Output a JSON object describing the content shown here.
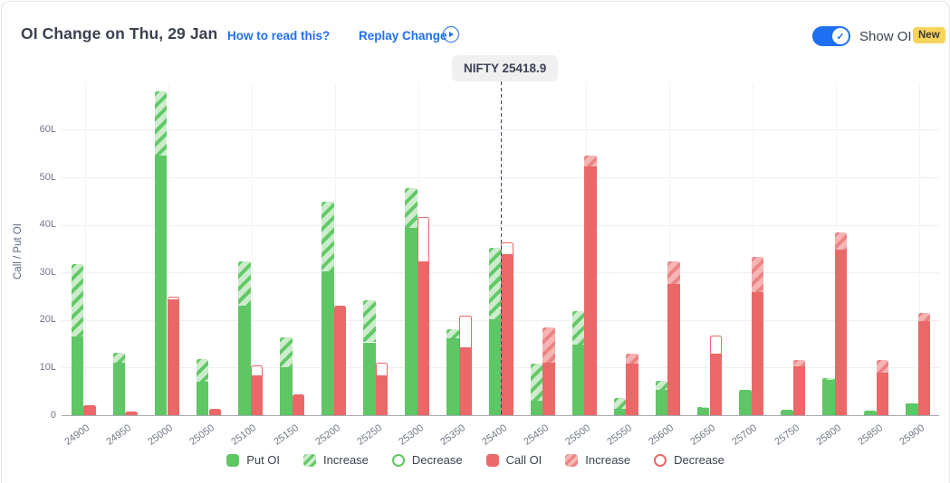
{
  "header": {
    "title": "OI Change on Thu, 29 Jan",
    "link_how_to_read": "How to read this?",
    "link_replay": "Replay Change",
    "show_oi_label": "Show OI",
    "new_badge": "New",
    "toggle_on": true
  },
  "colors": {
    "put_green": "#5ec664",
    "put_light_green": "#cceccc",
    "put_stripe_green": "#63c968",
    "call_red": "#ea6868",
    "call_light_red": "#f6b4b4",
    "call_stripe_red": "#ec8484",
    "accent_blue": "#1f6ff2",
    "link_blue": "#2b6be4",
    "badge_yellow": "#f9d45c",
    "nifty_line": "#3c4352"
  },
  "chart_data": {
    "type": "bar",
    "title": "OI Change on Thu, 29 Jan",
    "ylabel": "Call / Put OI",
    "xlabel": "",
    "unit": "lakh (L)",
    "ylim": [
      0,
      70
    ],
    "y_ticks": [
      "0",
      "10L",
      "20L",
      "30L",
      "40L",
      "50L",
      "60L"
    ],
    "grid": true,
    "legend_position": "bottom",
    "nifty_label": "NIFTY 25418.9",
    "nifty_value": 25418.9,
    "legend": [
      {
        "label": "Put OI",
        "swatch": "put-solid"
      },
      {
        "label": "Increase",
        "swatch": "put-increase"
      },
      {
        "label": "Decrease",
        "swatch": "put-decrease"
      },
      {
        "label": "Call OI",
        "swatch": "call-solid"
      },
      {
        "label": "Increase",
        "swatch": "call-increase"
      },
      {
        "label": "Decrease",
        "swatch": "call-decrease"
      }
    ],
    "categories": [
      "24900",
      "24950",
      "25000",
      "25050",
      "25100",
      "25150",
      "25200",
      "25250",
      "25300",
      "25350",
      "25400",
      "25450",
      "25500",
      "25550",
      "25600",
      "25650",
      "25700",
      "25750",
      "25800",
      "25850",
      "25900"
    ],
    "strikes": [
      {
        "strike": "24900",
        "put": {
          "solid": 16.5,
          "increase": 15.3,
          "decrease": 0
        },
        "call": {
          "solid": 2.1,
          "increase": 0,
          "decrease": 0
        }
      },
      {
        "strike": "24950",
        "put": {
          "solid": 11.0,
          "increase": 2.2,
          "decrease": 0
        },
        "call": {
          "solid": 0.8,
          "increase": 0,
          "decrease": 0
        }
      },
      {
        "strike": "25000",
        "put": {
          "solid": 54.5,
          "increase": 13.5,
          "decrease": 0
        },
        "call": {
          "solid": 24.4,
          "increase": 0,
          "decrease": 0.6
        }
      },
      {
        "strike": "25050",
        "put": {
          "solid": 7.0,
          "increase": 4.8,
          "decrease": 0
        },
        "call": {
          "solid": 1.4,
          "increase": 0,
          "decrease": 0
        }
      },
      {
        "strike": "25100",
        "put": {
          "solid": 23.0,
          "increase": 9.4,
          "decrease": 0
        },
        "call": {
          "solid": 8.3,
          "increase": 0,
          "decrease": 2.2
        }
      },
      {
        "strike": "25150",
        "put": {
          "solid": 10.0,
          "increase": 6.4,
          "decrease": 0
        },
        "call": {
          "solid": 4.3,
          "increase": 0,
          "decrease": 0
        }
      },
      {
        "strike": "25200",
        "put": {
          "solid": 30.3,
          "increase": 14.5,
          "decrease": 0
        },
        "call": {
          "solid": 23.0,
          "increase": 0,
          "decrease": 0
        }
      },
      {
        "strike": "25250",
        "put": {
          "solid": 15.3,
          "increase": 8.9,
          "decrease": 0
        },
        "call": {
          "solid": 8.3,
          "increase": 0,
          "decrease": 2.8
        }
      },
      {
        "strike": "25300",
        "put": {
          "solid": 39.3,
          "increase": 8.5,
          "decrease": 0
        },
        "call": {
          "solid": 32.3,
          "increase": 0,
          "decrease": 9.3
        }
      },
      {
        "strike": "25350",
        "put": {
          "solid": 16.2,
          "increase": 1.9,
          "decrease": 0
        },
        "call": {
          "solid": 14.2,
          "increase": 0,
          "decrease": 6.8
        }
      },
      {
        "strike": "25400",
        "put": {
          "solid": 20.1,
          "increase": 15.1,
          "decrease": 0
        },
        "call": {
          "solid": 33.8,
          "increase": 0,
          "decrease": 2.5
        }
      },
      {
        "strike": "25450",
        "put": {
          "solid": 3.0,
          "increase": 7.8,
          "decrease": 0
        },
        "call": {
          "solid": 11.0,
          "increase": 7.4,
          "decrease": 0
        }
      },
      {
        "strike": "25500",
        "put": {
          "solid": 14.8,
          "increase": 7.1,
          "decrease": 0
        },
        "call": {
          "solid": 52.2,
          "increase": 2.4,
          "decrease": 0
        }
      },
      {
        "strike": "25550",
        "put": {
          "solid": 1.4,
          "increase": 2.3,
          "decrease": 0
        },
        "call": {
          "solid": 10.9,
          "increase": 2.1,
          "decrease": 0
        }
      },
      {
        "strike": "25600",
        "put": {
          "solid": 5.4,
          "increase": 1.9,
          "decrease": 0
        },
        "call": {
          "solid": 27.5,
          "increase": 4.8,
          "decrease": 0
        }
      },
      {
        "strike": "25650",
        "put": {
          "solid": 1.5,
          "increase": 0.3,
          "decrease": 0
        },
        "call": {
          "solid": 12.9,
          "increase": 0,
          "decrease": 3.8
        }
      },
      {
        "strike": "25700",
        "put": {
          "solid": 5.4,
          "increase": 0,
          "decrease": 0
        },
        "call": {
          "solid": 25.9,
          "increase": 7.3,
          "decrease": 0
        }
      },
      {
        "strike": "25750",
        "put": {
          "solid": 1.1,
          "increase": 0,
          "decrease": 0
        },
        "call": {
          "solid": 10.3,
          "increase": 1.4,
          "decrease": 0
        }
      },
      {
        "strike": "25800",
        "put": {
          "solid": 7.5,
          "increase": 0.3,
          "decrease": 0
        },
        "call": {
          "solid": 34.8,
          "increase": 3.6,
          "decrease": 0
        }
      },
      {
        "strike": "25850",
        "put": {
          "solid": 1.0,
          "increase": 0,
          "decrease": 0
        },
        "call": {
          "solid": 8.9,
          "increase": 2.8,
          "decrease": 0
        }
      },
      {
        "strike": "25900",
        "put": {
          "solid": 2.4,
          "increase": 0.1,
          "decrease": 0
        },
        "call": {
          "solid": 19.7,
          "increase": 1.8,
          "decrease": 0
        }
      }
    ]
  }
}
